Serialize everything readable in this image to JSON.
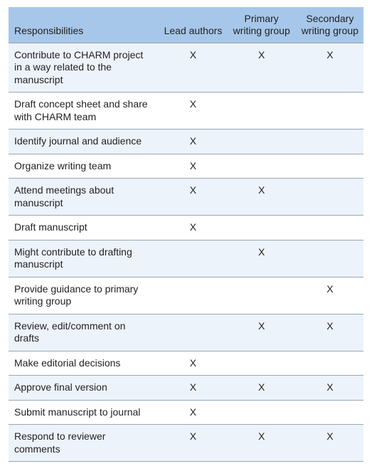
{
  "table": {
    "colors": {
      "header_bg": "#a7c7ea",
      "row_odd_bg": "#edf3fa",
      "row_even_bg": "#ffffff",
      "border": "#9aa7b3",
      "text": "#222222"
    },
    "font_size_pt": 10.5,
    "columns": [
      {
        "key": "resp",
        "label": "Responsibilities",
        "align": "left"
      },
      {
        "key": "lead",
        "label": "Lead authors",
        "align": "center"
      },
      {
        "key": "primary",
        "label": "Primary writing group",
        "align": "center"
      },
      {
        "key": "secondary",
        "label": "Secondary writing group",
        "align": "center"
      }
    ],
    "mark_char": "X",
    "rows": [
      {
        "resp": "Contribute to CHARM project in a way related to the manuscript",
        "lead": true,
        "primary": true,
        "secondary": true
      },
      {
        "resp": "Draft concept sheet and share with CHARM team",
        "lead": true,
        "primary": false,
        "secondary": false
      },
      {
        "resp": "Identify journal and audience",
        "lead": true,
        "primary": false,
        "secondary": false
      },
      {
        "resp": "Organize writing team",
        "lead": true,
        "primary": false,
        "secondary": false
      },
      {
        "resp": "Attend meetings about manuscript",
        "lead": true,
        "primary": true,
        "secondary": false
      },
      {
        "resp": "Draft manuscript",
        "lead": true,
        "primary": false,
        "secondary": false
      },
      {
        "resp": "Might contribute to drafting manuscript",
        "lead": false,
        "primary": true,
        "secondary": false
      },
      {
        "resp": "Provide guidance to primary writing group",
        "lead": false,
        "primary": false,
        "secondary": true
      },
      {
        "resp": "Review, edit/comment on drafts",
        "lead": false,
        "primary": true,
        "secondary": true
      },
      {
        "resp": "Make editorial decisions",
        "lead": true,
        "primary": false,
        "secondary": false
      },
      {
        "resp": "Approve final version",
        "lead": true,
        "primary": true,
        "secondary": true
      },
      {
        "resp": "Submit manuscript to journal",
        "lead": true,
        "primary": false,
        "secondary": false
      },
      {
        "resp": "Respond to reviewer comments",
        "lead": true,
        "primary": true,
        "secondary": true
      }
    ]
  }
}
